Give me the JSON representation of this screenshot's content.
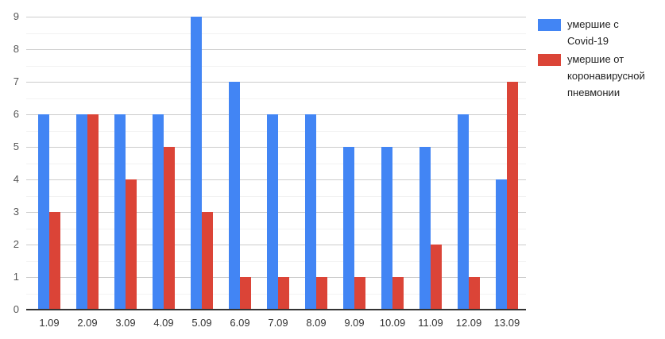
{
  "chart_data": {
    "type": "bar",
    "title": "",
    "xlabel": "",
    "ylabel": "",
    "categories": [
      "1.09",
      "2.09",
      "3.09",
      "4.09",
      "5.09",
      "6.09",
      "7.09",
      "8.09",
      "9.09",
      "10.09",
      "11.09",
      "12.09",
      "13.09"
    ],
    "series": [
      {
        "name": "умершие с Covid-19",
        "color": "#4285F4",
        "values": [
          6,
          6,
          6,
          6,
          9,
          7,
          6,
          6,
          5,
          5,
          5,
          6,
          4
        ]
      },
      {
        "name": "умершие от коронавирусной пневмонии",
        "color": "#DB4437",
        "values": [
          3,
          6,
          4,
          5,
          3,
          1,
          1,
          1,
          1,
          1,
          2,
          1,
          7
        ]
      }
    ],
    "ylim": [
      0,
      9
    ],
    "y_ticks": [
      0,
      1,
      2,
      3,
      4,
      5,
      6,
      7,
      8,
      9
    ],
    "minor_tick_step": 0.5,
    "grid": true,
    "legend_position": "right"
  },
  "colors": {
    "background": "#ffffff",
    "major_gridline": "#cccccc",
    "minor_gridline": "#f2f2f2",
    "baseline": "#333333",
    "y_label_text": "#555555",
    "x_label_text": "#333333",
    "legend_text": "#222222"
  }
}
